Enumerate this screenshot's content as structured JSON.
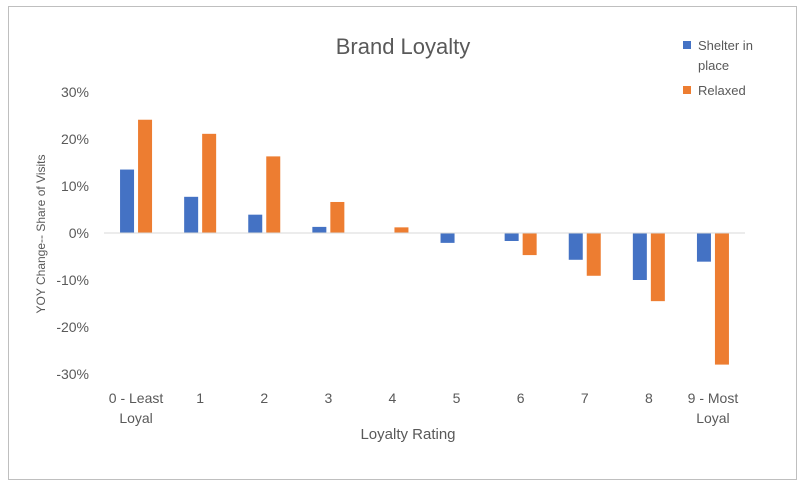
{
  "chart_data": {
    "type": "bar",
    "title": "Brand Loyalty",
    "xlabel": "Loyalty Rating",
    "ylabel": "YOY Change-- Share of Visits",
    "categories": [
      [
        "0 - Least",
        "Loyal"
      ],
      [
        "1"
      ],
      [
        "2"
      ],
      [
        "3"
      ],
      [
        "4"
      ],
      [
        "5"
      ],
      [
        "6"
      ],
      [
        "7"
      ],
      [
        "8"
      ],
      [
        "9 - Most",
        "Loyal"
      ]
    ],
    "ylim": [
      -0.3,
      0.3
    ],
    "yticks": [
      {
        "value": 0.3,
        "label": "30%"
      },
      {
        "value": 0.2,
        "label": "20%"
      },
      {
        "value": 0.1,
        "label": "10%"
      },
      {
        "value": 0.0,
        "label": "0%"
      },
      {
        "value": -0.1,
        "label": "-10%"
      },
      {
        "value": -0.2,
        "label": "-20%"
      },
      {
        "value": -0.3,
        "label": "-30%"
      }
    ],
    "grid": false,
    "legend_position": "top-right",
    "series": [
      {
        "name": [
          "Shelter in",
          "place"
        ],
        "color": "#4472C4",
        "values": [
          0.135,
          0.077,
          0.039,
          0.013,
          0.0,
          -0.021,
          -0.017,
          -0.057,
          -0.1,
          -0.061
        ]
      },
      {
        "name": [
          "Relaxed"
        ],
        "color": "#ED7D31",
        "values": [
          0.241,
          0.211,
          0.163,
          0.066,
          0.012,
          0.0,
          -0.047,
          -0.091,
          -0.145,
          -0.28
        ]
      }
    ]
  }
}
